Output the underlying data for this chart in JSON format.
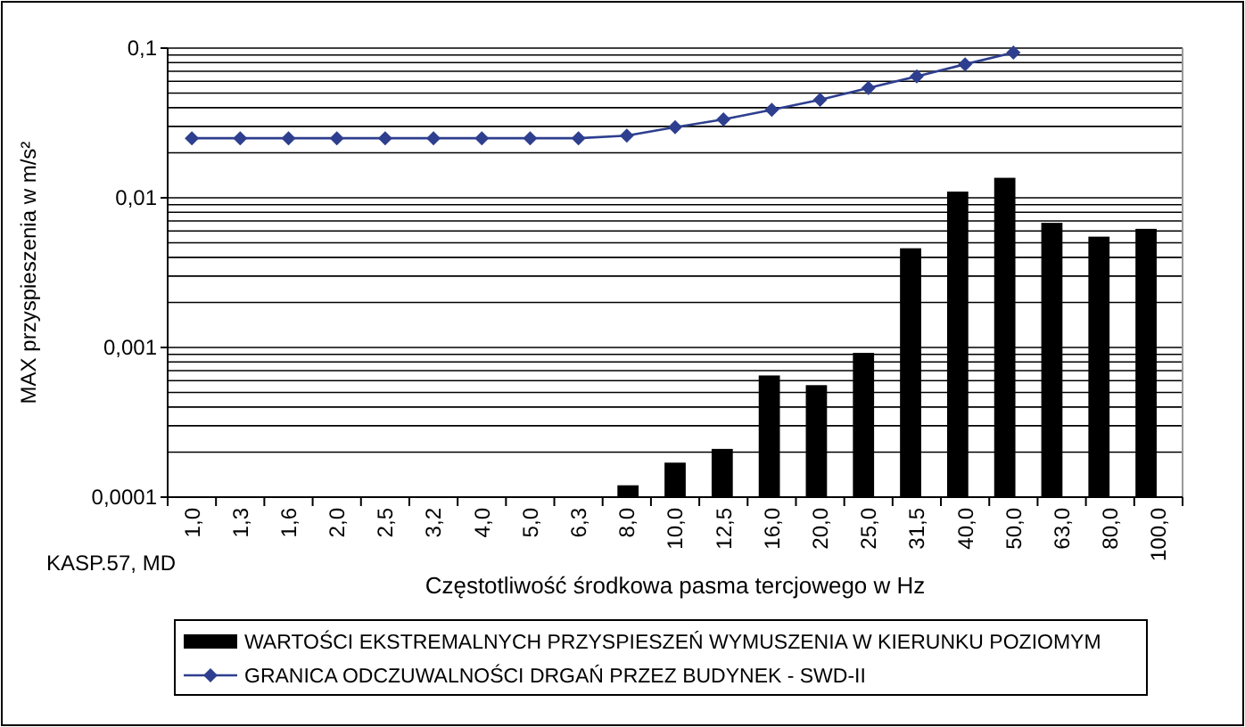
{
  "chart_data": {
    "type": "bar",
    "xlabel": "Częstotliwość środkowa pasma tercjowego w Hz",
    "ylabel": "MAX przyspieszenia w m/s²",
    "categories": [
      "1,0",
      "1,3",
      "1,6",
      "2,0",
      "2,5",
      "3,2",
      "4,0",
      "5,0",
      "6,3",
      "8,0",
      "10,0",
      "12,5",
      "16,0",
      "20,0",
      "25,0",
      "31,5",
      "40,0",
      "50,0",
      "63,0",
      "80,0",
      "100,0"
    ],
    "series": [
      {
        "name": "WARTOŚCI EKSTREMALNYCH PRZYSPIESZEŃ WYMUSZENIA W KIERUNKU POZIOMYM",
        "color": "#000000",
        "values": [
          null,
          null,
          null,
          null,
          null,
          null,
          null,
          null,
          null,
          0.00012,
          0.00017,
          0.00021,
          0.00065,
          0.00056,
          0.00092,
          0.0046,
          0.011,
          0.0136,
          0.0068,
          0.0055,
          0.0062
        ]
      },
      {
        "name": "GRANICA ODCZUWALNOŚCI DRGAŃ PRZEZ BUDYNEK - SWD-II",
        "type": "line",
        "color": "#2e3f8f",
        "marker": "diamond",
        "values": [
          0.025,
          0.025,
          0.025,
          0.025,
          0.025,
          0.025,
          0.025,
          0.025,
          0.025,
          0.026,
          0.0296,
          0.0334,
          0.0387,
          0.0452,
          0.0541,
          0.0647,
          0.078,
          0.0935,
          null,
          null,
          null
        ]
      }
    ],
    "log": "y",
    "ylim": [
      0.0001,
      0.1
    ],
    "yticks": [
      {
        "value": 0.0001,
        "label": "0,0001"
      },
      {
        "value": 0.0002,
        "label": null
      },
      {
        "value": 0.0003,
        "label": null
      },
      {
        "value": 0.0004,
        "label": null
      },
      {
        "value": 0.0005,
        "label": null
      },
      {
        "value": 0.0006,
        "label": null
      },
      {
        "value": 0.0007,
        "label": null
      },
      {
        "value": 0.0008,
        "label": null
      },
      {
        "value": 0.0009,
        "label": null
      },
      {
        "value": 0.001,
        "label": "0,001"
      },
      {
        "value": 0.002,
        "label": null
      },
      {
        "value": 0.003,
        "label": null
      },
      {
        "value": 0.004,
        "label": null
      },
      {
        "value": 0.005,
        "label": null
      },
      {
        "value": 0.006,
        "label": null
      },
      {
        "value": 0.007,
        "label": null
      },
      {
        "value": 0.008,
        "label": null
      },
      {
        "value": 0.009,
        "label": null
      },
      {
        "value": 0.01,
        "label": "0,01"
      },
      {
        "value": 0.02,
        "label": null
      },
      {
        "value": 0.03,
        "label": null
      },
      {
        "value": 0.04,
        "label": null
      },
      {
        "value": 0.05,
        "label": null
      },
      {
        "value": 0.06,
        "label": null
      },
      {
        "value": 0.07,
        "label": null
      },
      {
        "value": 0.08,
        "label": null
      },
      {
        "value": 0.09,
        "label": null
      },
      {
        "value": 0.1,
        "label": "0,1"
      }
    ],
    "grid": "y",
    "legend": "bottom",
    "annotations": [
      "KASP.57,  MD"
    ]
  }
}
